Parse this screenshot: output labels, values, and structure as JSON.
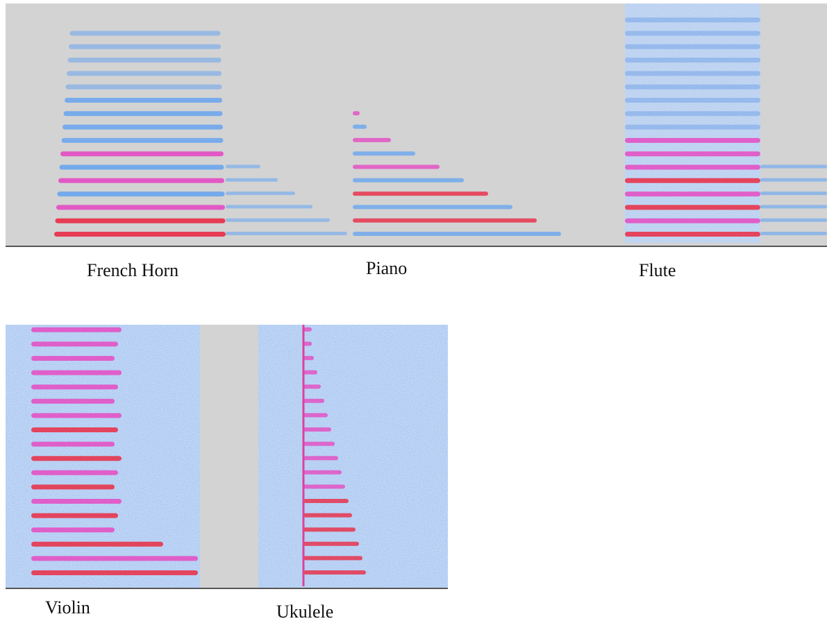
{
  "panels": [
    {
      "label": "French Horn"
    },
    {
      "label": "Piano"
    },
    {
      "label": "Flute"
    },
    {
      "label": "Violin"
    },
    {
      "label": "Ukulele"
    }
  ]
}
